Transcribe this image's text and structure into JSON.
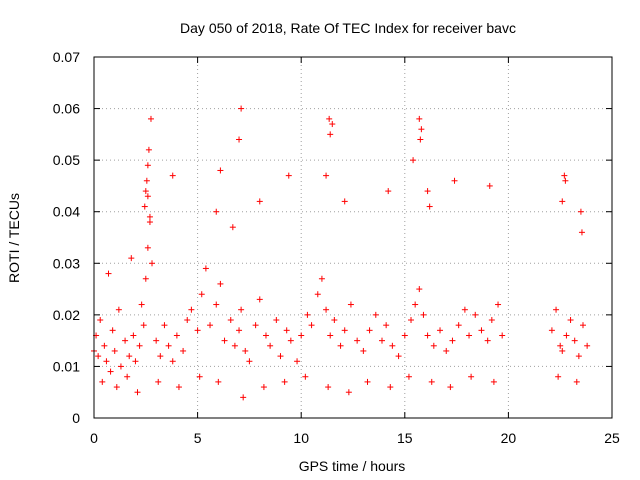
{
  "chart_data": {
    "type": "scatter",
    "title": "Day 050 of 2018, Rate Of TEC Index for receiver bavc",
    "xlabel": "GPS time / hours",
    "ylabel": "ROTI / TECUs",
    "xlim": [
      0,
      25
    ],
    "ylim": [
      0,
      0.07
    ],
    "grid": true,
    "marker": "plus",
    "color": "#ff0000",
    "xticks": [
      0,
      5,
      10,
      15,
      20,
      25
    ],
    "yticks": [
      0,
      0.01,
      0.02,
      0.03,
      0.04,
      0.05,
      0.06,
      0.07
    ],
    "xtick_labels": [
      "0",
      "5",
      "10",
      "15",
      "20",
      "25"
    ],
    "ytick_labels": [
      "0",
      "0.01",
      "0.02",
      "0.03",
      "0.04",
      "0.05",
      "0.06",
      "0.07"
    ],
    "x": [
      0.0,
      0.1,
      0.2,
      0.3,
      0.5,
      0.6,
      0.8,
      0.9,
      1.0,
      1.2,
      1.3,
      1.5,
      1.6,
      1.7,
      1.9,
      2.0,
      2.2,
      2.3,
      2.4,
      2.5,
      2.6,
      2.7,
      2.8,
      3.0,
      3.2,
      3.4,
      3.6,
      3.8,
      4.0,
      4.3,
      4.5,
      4.7,
      5.0,
      5.2,
      5.4,
      5.6,
      5.9,
      6.1,
      6.3,
      6.6,
      6.8,
      7.0,
      7.1,
      7.3,
      7.5,
      7.8,
      8.0,
      8.3,
      8.5,
      8.8,
      9.0,
      9.3,
      9.5,
      9.8,
      10.0,
      10.3,
      10.5,
      10.8,
      11.0,
      11.2,
      11.4,
      11.6,
      11.9,
      12.1,
      12.4,
      12.7,
      13.0,
      13.3,
      13.6,
      13.9,
      14.1,
      14.4,
      14.7,
      15.0,
      15.3,
      15.5,
      15.7,
      15.9,
      16.1,
      16.4,
      16.7,
      17.0,
      17.3,
      17.6,
      17.9,
      18.1,
      18.4,
      18.7,
      19.0,
      19.2,
      19.5,
      19.7,
      22.1,
      22.3,
      22.5,
      22.6,
      22.8,
      23.0,
      23.2,
      23.4,
      23.6,
      23.8,
      0.4,
      1.1,
      2.1,
      3.1,
      4.1,
      5.1,
      6.0,
      7.2,
      8.2,
      9.2,
      10.2,
      11.3,
      12.3,
      13.2,
      14.3,
      15.2,
      16.3,
      17.2,
      18.2,
      19.3,
      22.4,
      23.3,
      0.7,
      1.8,
      2.45,
      2.55,
      2.65,
      2.75,
      2.6,
      2.5,
      7.1,
      7.0,
      11.35,
      11.4,
      11.5,
      15.7,
      15.8,
      15.75,
      15.4,
      22.7,
      22.75,
      23.5,
      23.55,
      6.1,
      9.4,
      11.2,
      14.2,
      16.1,
      16.2,
      17.4,
      19.1,
      3.8,
      5.9,
      8.0,
      12.1,
      2.6,
      2.7,
      6.7,
      22.6
    ],
    "y": [
      0.013,
      0.016,
      0.012,
      0.019,
      0.014,
      0.011,
      0.009,
      0.017,
      0.013,
      0.021,
      0.01,
      0.015,
      0.008,
      0.012,
      0.016,
      0.011,
      0.014,
      0.022,
      0.018,
      0.027,
      0.033,
      0.038,
      0.03,
      0.015,
      0.012,
      0.018,
      0.014,
      0.011,
      0.016,
      0.013,
      0.019,
      0.021,
      0.017,
      0.024,
      0.029,
      0.018,
      0.022,
      0.026,
      0.015,
      0.019,
      0.014,
      0.017,
      0.021,
      0.013,
      0.011,
      0.018,
      0.023,
      0.016,
      0.014,
      0.019,
      0.012,
      0.017,
      0.015,
      0.011,
      0.016,
      0.02,
      0.018,
      0.024,
      0.027,
      0.021,
      0.016,
      0.019,
      0.014,
      0.017,
      0.022,
      0.015,
      0.013,
      0.017,
      0.02,
      0.015,
      0.018,
      0.014,
      0.012,
      0.016,
      0.019,
      0.022,
      0.025,
      0.02,
      0.016,
      0.014,
      0.017,
      0.013,
      0.015,
      0.018,
      0.021,
      0.016,
      0.02,
      0.017,
      0.015,
      0.019,
      0.022,
      0.016,
      0.017,
      0.021,
      0.014,
      0.013,
      0.016,
      0.019,
      0.015,
      0.012,
      0.018,
      0.014,
      0.007,
      0.006,
      0.005,
      0.007,
      0.006,
      0.008,
      0.007,
      0.004,
      0.006,
      0.007,
      0.008,
      0.006,
      0.005,
      0.007,
      0.006,
      0.008,
      0.007,
      0.006,
      0.008,
      0.007,
      0.008,
      0.007,
      0.028,
      0.031,
      0.041,
      0.046,
      0.052,
      0.058,
      0.049,
      0.044,
      0.06,
      0.054,
      0.058,
      0.055,
      0.057,
      0.058,
      0.056,
      0.054,
      0.05,
      0.047,
      0.046,
      0.04,
      0.036,
      0.048,
      0.047,
      0.047,
      0.044,
      0.044,
      0.041,
      0.046,
      0.045,
      0.047,
      0.04,
      0.042,
      0.042,
      0.043,
      0.039,
      0.037,
      0.042
    ]
  }
}
